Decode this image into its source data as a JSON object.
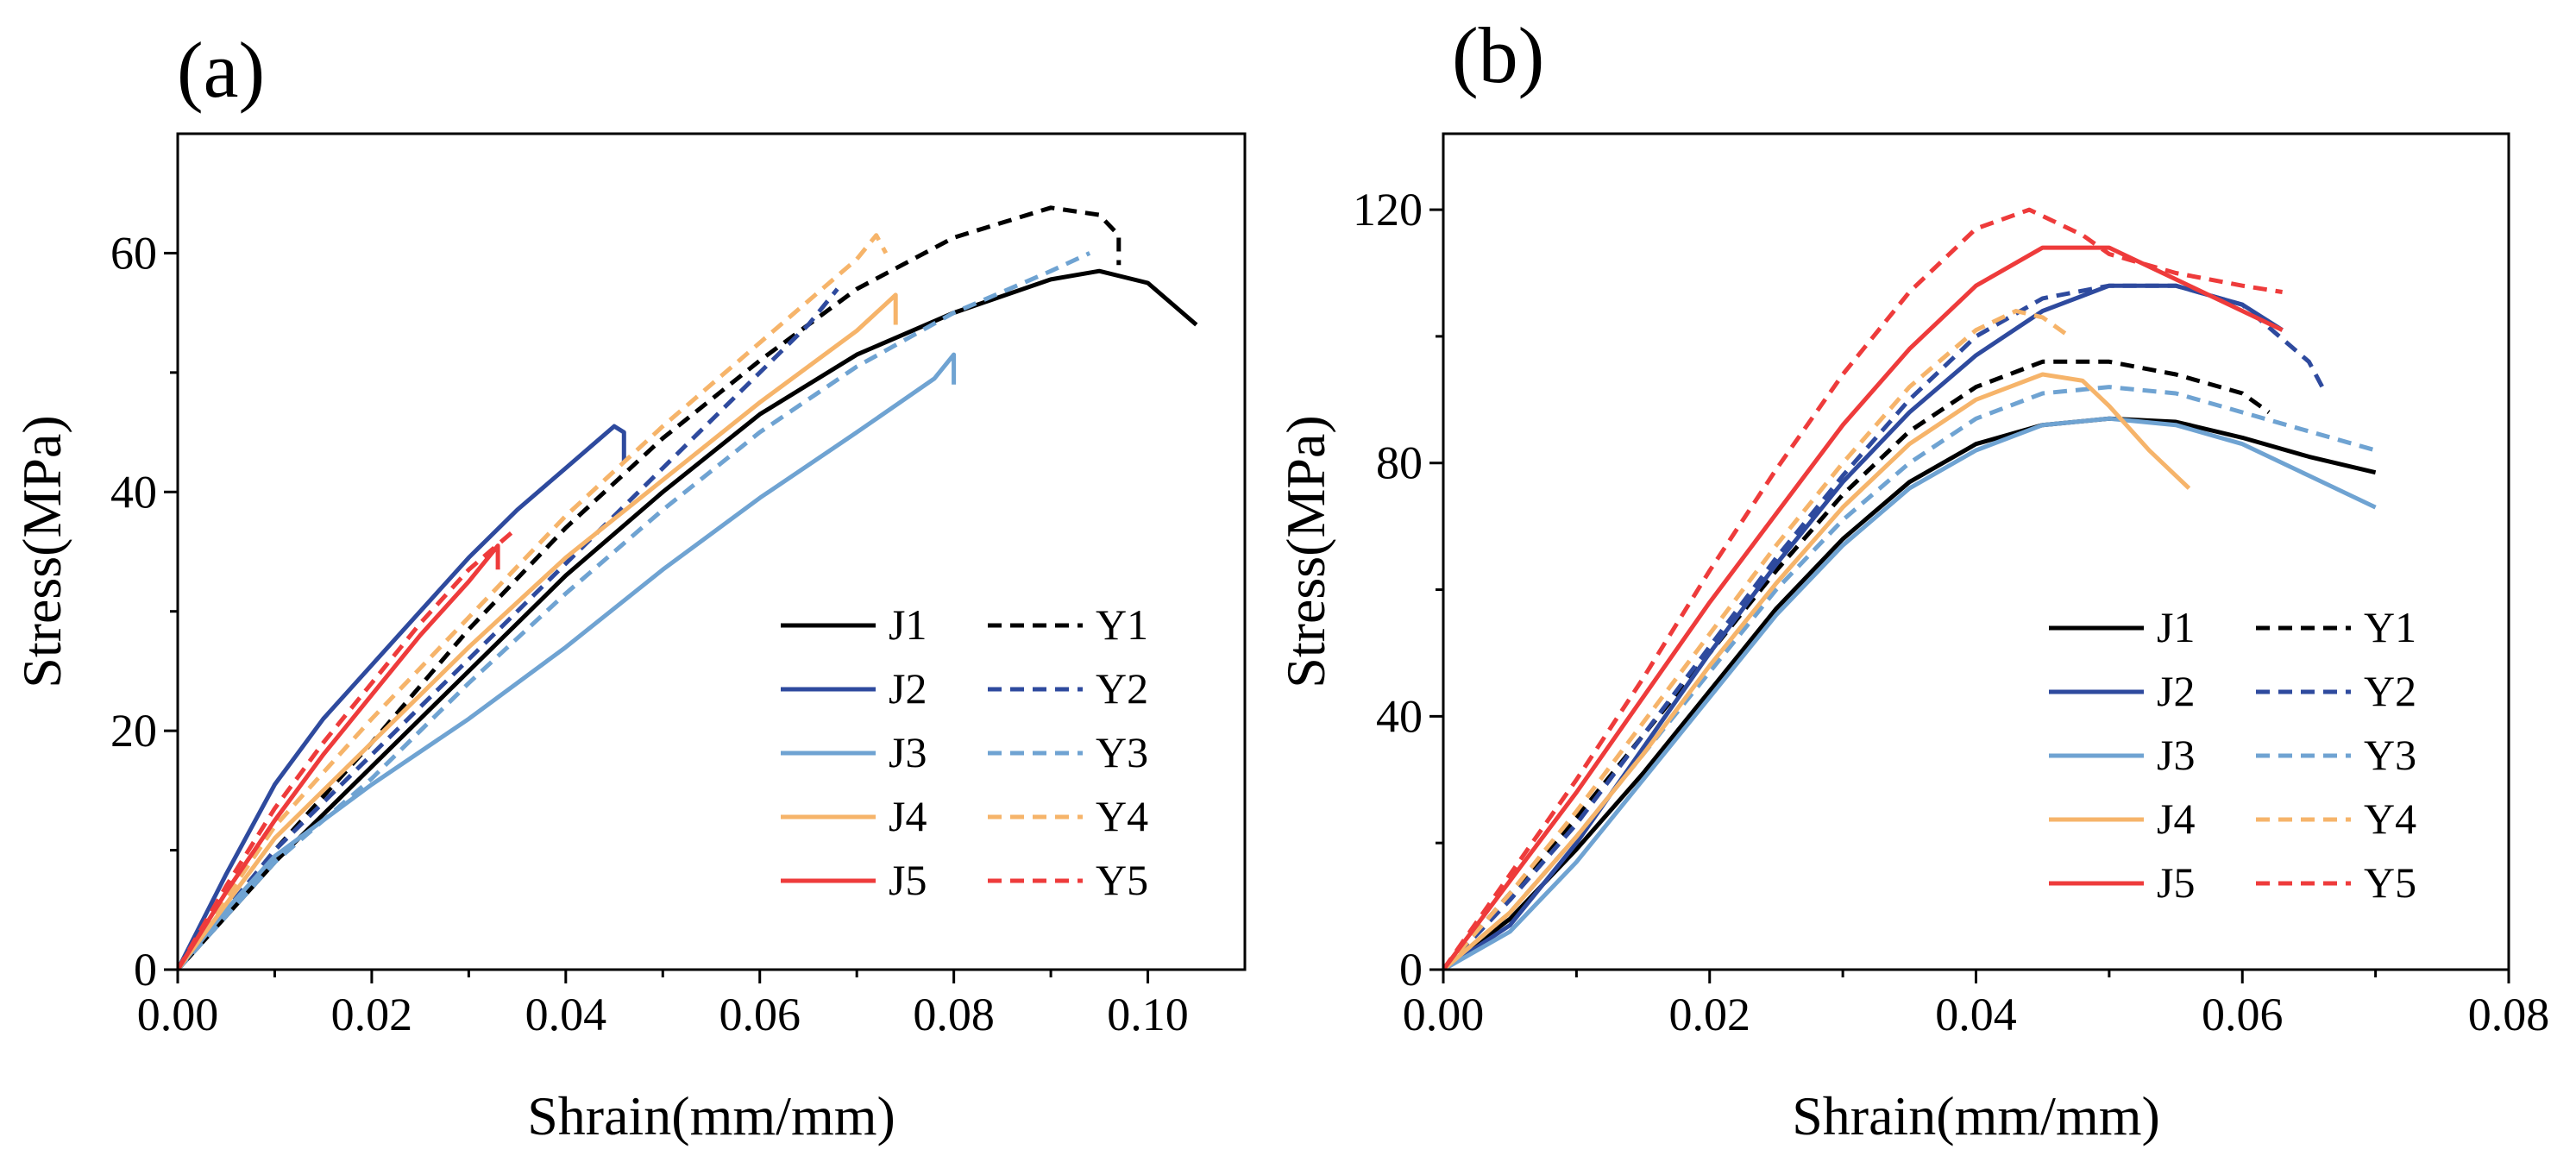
{
  "chart_data": [
    {
      "type": "line",
      "panel_label": "(a)",
      "xlabel": "Shrain(mm/mm)",
      "ylabel": "Stress(MPa)",
      "xlim": [
        0,
        0.11
      ],
      "ylim": [
        0,
        70
      ],
      "xticks": [
        0.0,
        0.02,
        0.04,
        0.06,
        0.08,
        0.1
      ],
      "xtick_labels": [
        "0.00",
        "0.02",
        "0.04",
        "0.06",
        "0.08",
        "0.10"
      ],
      "yticks": [
        0,
        20,
        40,
        60
      ],
      "ytick_labels": [
        "0",
        "20",
        "40",
        "60"
      ],
      "legend_position": "lower-right",
      "series": [
        {
          "name": "J1",
          "color": "#000000",
          "dash": false,
          "x": [
            0,
            0.01,
            0.02,
            0.03,
            0.04,
            0.05,
            0.06,
            0.07,
            0.08,
            0.09,
            0.095,
            0.1,
            0.105
          ],
          "y": [
            0,
            9,
            17,
            25,
            33,
            40,
            46.5,
            51.5,
            55,
            57.8,
            58.5,
            57.5,
            54
          ]
        },
        {
          "name": "Y1",
          "color": "#000000",
          "dash": true,
          "x": [
            0,
            0.01,
            0.02,
            0.03,
            0.04,
            0.05,
            0.06,
            0.07,
            0.08,
            0.09,
            0.095,
            0.097,
            0.097
          ],
          "y": [
            0,
            10,
            19,
            28.5,
            37,
            44.5,
            51,
            57,
            61.3,
            63.8,
            63.2,
            61.5,
            59
          ]
        },
        {
          "name": "J2",
          "color": "#2E4A9E",
          "dash": false,
          "x": [
            0,
            0.005,
            0.01,
            0.015,
            0.02,
            0.025,
            0.03,
            0.035,
            0.04,
            0.045,
            0.046,
            0.046
          ],
          "y": [
            0,
            8,
            15.5,
            21,
            25.5,
            30,
            34.5,
            38.5,
            42,
            45.5,
            45,
            42.5
          ]
        },
        {
          "name": "Y2",
          "color": "#2E4A9E",
          "dash": true,
          "x": [
            0,
            0.01,
            0.02,
            0.03,
            0.04,
            0.05,
            0.06,
            0.065,
            0.068
          ],
          "y": [
            0,
            10,
            18,
            26,
            34,
            42,
            50,
            54,
            57
          ]
        },
        {
          "name": "J3",
          "color": "#6FA3D2",
          "dash": false,
          "x": [
            0,
            0.005,
            0.01,
            0.02,
            0.03,
            0.04,
            0.05,
            0.06,
            0.07,
            0.078,
            0.08,
            0.08
          ],
          "y": [
            0,
            5,
            9.5,
            15.5,
            21,
            27,
            33.5,
            39.5,
            45,
            49.5,
            51.5,
            49
          ]
        },
        {
          "name": "Y3",
          "color": "#6FA3D2",
          "dash": true,
          "x": [
            0,
            0.01,
            0.02,
            0.03,
            0.04,
            0.05,
            0.06,
            0.07,
            0.08,
            0.09,
            0.094
          ],
          "y": [
            0,
            9,
            16,
            24,
            31.5,
            38.5,
            45,
            50.5,
            55,
            58.5,
            60
          ]
        },
        {
          "name": "J4",
          "color": "#F6B46A",
          "dash": false,
          "x": [
            0,
            0.01,
            0.02,
            0.03,
            0.04,
            0.05,
            0.06,
            0.07,
            0.074,
            0.074
          ],
          "y": [
            0,
            11,
            19,
            27,
            34.5,
            41,
            47.5,
            53.5,
            56.5,
            54
          ]
        },
        {
          "name": "Y4",
          "color": "#F6B46A",
          "dash": true,
          "x": [
            0,
            0.01,
            0.02,
            0.03,
            0.04,
            0.05,
            0.06,
            0.07,
            0.072,
            0.073
          ],
          "y": [
            0,
            12,
            21,
            29.5,
            38,
            45.5,
            52.5,
            59.5,
            61.5,
            60
          ]
        },
        {
          "name": "J5",
          "color": "#EE3B3B",
          "dash": false,
          "x": [
            0,
            0.005,
            0.01,
            0.015,
            0.02,
            0.025,
            0.03,
            0.033,
            0.033
          ],
          "y": [
            0,
            6.5,
            12.5,
            18,
            23,
            28,
            32.5,
            35.5,
            33.5
          ]
        },
        {
          "name": "Y5",
          "color": "#EE3B3B",
          "dash": true,
          "x": [
            0,
            0.005,
            0.01,
            0.015,
            0.02,
            0.025,
            0.03,
            0.035
          ],
          "y": [
            0,
            7,
            13.5,
            19,
            24,
            29,
            33.5,
            37
          ]
        }
      ]
    },
    {
      "type": "line",
      "panel_label": "(b)",
      "xlabel": "Shrain(mm/mm)",
      "ylabel": "Stress(MPa)",
      "xlim": [
        0,
        0.08
      ],
      "ylim": [
        0,
        132
      ],
      "xticks": [
        0.0,
        0.02,
        0.04,
        0.06,
        0.08
      ],
      "xtick_labels": [
        "0.00",
        "0.02",
        "0.04",
        "0.06",
        "0.08"
      ],
      "yticks": [
        0,
        40,
        80,
        120
      ],
      "ytick_labels": [
        "0",
        "40",
        "80",
        "120"
      ],
      "legend_position": "lower-right",
      "series": [
        {
          "name": "J1",
          "color": "#000000",
          "dash": false,
          "x": [
            0,
            0.005,
            0.01,
            0.015,
            0.02,
            0.025,
            0.03,
            0.035,
            0.04,
            0.045,
            0.05,
            0.055,
            0.06,
            0.065,
            0.07
          ],
          "y": [
            0,
            8,
            19,
            31,
            44,
            57,
            68,
            77,
            83,
            86,
            87,
            86.5,
            84,
            81,
            78.5
          ]
        },
        {
          "name": "Y1",
          "color": "#000000",
          "dash": true,
          "x": [
            0,
            0.005,
            0.01,
            0.015,
            0.02,
            0.025,
            0.03,
            0.035,
            0.04,
            0.045,
            0.05,
            0.055,
            0.06,
            0.062
          ],
          "y": [
            0,
            12,
            24,
            37,
            50,
            63,
            75,
            85,
            92,
            96,
            96,
            94,
            91,
            88
          ]
        },
        {
          "name": "J2",
          "color": "#2E4A9E",
          "dash": false,
          "x": [
            0,
            0.005,
            0.01,
            0.015,
            0.02,
            0.025,
            0.03,
            0.035,
            0.04,
            0.045,
            0.05,
            0.055,
            0.06,
            0.063
          ],
          "y": [
            0,
            7,
            20,
            35,
            50,
            64,
            77,
            88,
            97,
            104,
            108,
            108,
            105,
            101
          ]
        },
        {
          "name": "Y2",
          "color": "#2E4A9E",
          "dash": true,
          "x": [
            0,
            0.005,
            0.01,
            0.015,
            0.02,
            0.025,
            0.03,
            0.035,
            0.04,
            0.045,
            0.05,
            0.055,
            0.06,
            0.065,
            0.066
          ],
          "y": [
            0,
            11,
            23,
            37,
            51,
            65,
            78,
            90,
            100,
            106,
            108,
            108,
            105,
            96,
            92
          ]
        },
        {
          "name": "J3",
          "color": "#6FA3D2",
          "dash": false,
          "x": [
            0,
            0.005,
            0.01,
            0.015,
            0.02,
            0.025,
            0.03,
            0.035,
            0.04,
            0.045,
            0.05,
            0.055,
            0.06,
            0.065,
            0.07
          ],
          "y": [
            0,
            6,
            17,
            30,
            43,
            56,
            67,
            76,
            82,
            86,
            87,
            86,
            83,
            78,
            73
          ]
        },
        {
          "name": "Y3",
          "color": "#6FA3D2",
          "dash": true,
          "x": [
            0,
            0.005,
            0.01,
            0.015,
            0.02,
            0.025,
            0.03,
            0.035,
            0.04,
            0.045,
            0.05,
            0.055,
            0.06,
            0.065,
            0.07
          ],
          "y": [
            0,
            9,
            21,
            34,
            47,
            60,
            71,
            80,
            87,
            91,
            92,
            91,
            88,
            85,
            82
          ]
        },
        {
          "name": "J4",
          "color": "#F6B46A",
          "dash": false,
          "x": [
            0,
            0.005,
            0.01,
            0.015,
            0.02,
            0.025,
            0.03,
            0.035,
            0.04,
            0.045,
            0.048,
            0.05,
            0.053,
            0.056
          ],
          "y": [
            0,
            9,
            21,
            34,
            48,
            61,
            73,
            83,
            90,
            94,
            93,
            89,
            82,
            76
          ]
        },
        {
          "name": "Y4",
          "color": "#F6B46A",
          "dash": true,
          "x": [
            0,
            0.005,
            0.01,
            0.015,
            0.02,
            0.025,
            0.03,
            0.035,
            0.04,
            0.043,
            0.045,
            0.047
          ],
          "y": [
            0,
            12,
            25,
            39,
            53,
            67,
            80,
            92,
            101,
            104,
            103,
            100
          ]
        },
        {
          "name": "J5",
          "color": "#EE3B3B",
          "dash": false,
          "x": [
            0,
            0.005,
            0.01,
            0.015,
            0.02,
            0.025,
            0.03,
            0.035,
            0.04,
            0.045,
            0.05,
            0.055,
            0.06,
            0.063
          ],
          "y": [
            0,
            14,
            28,
            43,
            58,
            72,
            86,
            98,
            108,
            114,
            114,
            109,
            104,
            101
          ]
        },
        {
          "name": "Y5",
          "color": "#EE3B3B",
          "dash": true,
          "x": [
            0,
            0.005,
            0.01,
            0.015,
            0.02,
            0.025,
            0.03,
            0.035,
            0.04,
            0.044,
            0.048,
            0.05,
            0.055,
            0.06,
            0.063
          ],
          "y": [
            0,
            15,
            30,
            46,
            63,
            79,
            94,
            107,
            117,
            120,
            116,
            113,
            110,
            108,
            107
          ]
        }
      ]
    }
  ]
}
